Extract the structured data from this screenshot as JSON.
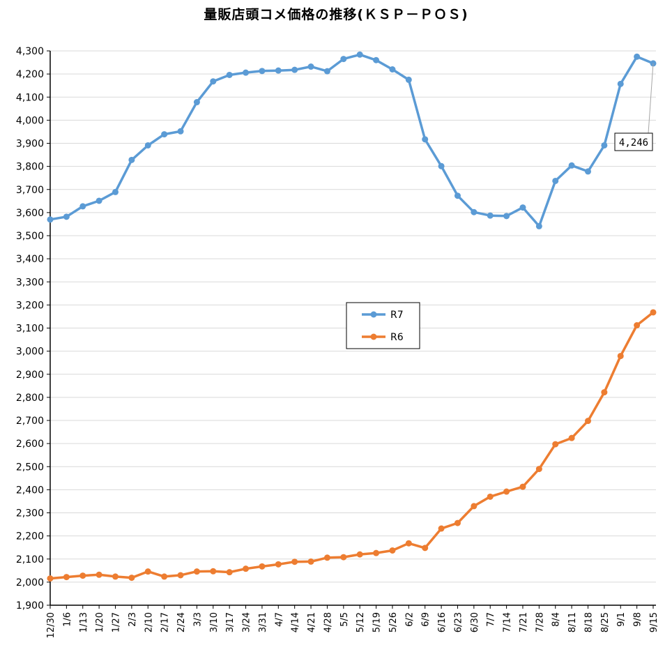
{
  "chart_data": {
    "type": "line",
    "title": "量販店頭コメ価格の推移(ＫＳＰ－ＰＯＳ)",
    "xlabel": "",
    "ylabel": "",
    "ylim": [
      1900,
      4300
    ],
    "ytick_step": 100,
    "grid": true,
    "legend_position": "center",
    "categories": [
      "12/30",
      "1/6",
      "1/13",
      "1/20",
      "1/27",
      "2/3",
      "2/10",
      "2/17",
      "2/24",
      "3/3",
      "3/10",
      "3/17",
      "3/24",
      "3/31",
      "4/7",
      "4/14",
      "4/21",
      "4/28",
      "5/5",
      "5/12",
      "5/19",
      "5/26",
      "6/2",
      "6/9",
      "6/16",
      "6/23",
      "6/30",
      "7/7",
      "7/14",
      "7/21",
      "7/28",
      "8/4",
      "8/11",
      "8/18",
      "8/25",
      "9/1",
      "9/8",
      "9/15"
    ],
    "series": [
      {
        "name": "R7",
        "color": "#5b9bd5",
        "values": [
          3570,
          3582,
          3627,
          3651,
          3689,
          3828,
          3891,
          3939,
          3952,
          4078,
          4168,
          4196,
          4206,
          4213,
          4215,
          4218,
          4232,
          4212,
          4265,
          4284,
          4260,
          4220,
          4175,
          3917,
          3801,
          3673,
          3602,
          3587,
          3585,
          3622,
          3541,
          3737,
          3804,
          3778,
          3891,
          4157,
          4275,
          4246
        ]
      },
      {
        "name": "R6",
        "color": "#ed7d31",
        "values": [
          2016,
          2022,
          2028,
          2032,
          2024,
          2019,
          2046,
          2024,
          2030,
          2046,
          2047,
          2043,
          2058,
          2068,
          2077,
          2088,
          2089,
          2106,
          2108,
          2120,
          2126,
          2137,
          2168,
          2148,
          2232,
          2256,
          2329,
          2370,
          2392,
          2413,
          2490,
          2597,
          2624,
          2698,
          2822,
          2979,
          3112,
          3168
        ]
      }
    ],
    "annotations": [
      {
        "series": "R7",
        "category": "9/15",
        "label": "4,246"
      }
    ]
  }
}
